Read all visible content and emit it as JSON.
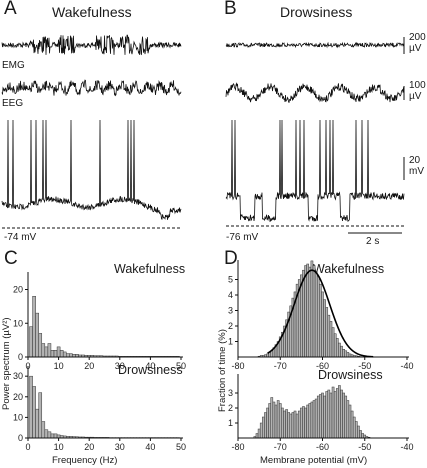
{
  "panels": {
    "A": {
      "letter": "A",
      "title": "Wakefulness",
      "emg_label": "EMG",
      "eeg_label": "EEG",
      "baseline": "-74 mV"
    },
    "B": {
      "letter": "B",
      "title": "Drowsiness",
      "baseline": "-76 mV",
      "scale_emg": [
        "200",
        "µV"
      ],
      "scale_eeg": [
        "100",
        "µV"
      ],
      "scale_vm": [
        "20",
        "mV"
      ],
      "scale_time": "2 s"
    },
    "C": {
      "letter": "C",
      "top_title": "Wakefulness",
      "bottom_title": "Drowsiness"
    },
    "D": {
      "letter": "D",
      "top_title": "Wakefulness",
      "bottom_title": "Drowsiness"
    }
  },
  "chart_data": [
    {
      "type": "bar",
      "id": "C-wakefulness",
      "title": "Wakefulness",
      "xlabel": "Frequency (Hz)",
      "ylabel": "Power spectrum (µV²)",
      "x_ticks": [
        "0",
        "10",
        "20",
        "30",
        "40",
        "50"
      ],
      "y_ticks": [
        "0",
        "10",
        "20"
      ],
      "xlim": [
        0,
        50
      ],
      "ylim": [
        0,
        24
      ],
      "bin_width": 1,
      "x": [
        1,
        2,
        3,
        4,
        5,
        6,
        7,
        8,
        9,
        10,
        11,
        12,
        13,
        14,
        15,
        16,
        17,
        18,
        19,
        20,
        21,
        22,
        23,
        24,
        25,
        26,
        27,
        28,
        29,
        30,
        31,
        32,
        33,
        34,
        35,
        36,
        37,
        38,
        39,
        40,
        41,
        42,
        43,
        44,
        45,
        46,
        47,
        48,
        49
      ],
      "values": [
        9,
        18,
        13,
        7,
        4,
        3,
        4,
        2,
        2,
        3,
        2,
        1.5,
        1,
        1,
        0.8,
        0.8,
        0.6,
        0.6,
        0.5,
        0.5,
        0.5,
        0.4,
        0.4,
        0.4,
        0.3,
        0.3,
        0.3,
        0.3,
        0.3,
        0.2,
        0.2,
        0.2,
        0.2,
        0.2,
        0.2,
        0.2,
        0.2,
        0.2,
        0.2,
        0.2,
        0.2,
        0.2,
        0.2,
        0.2,
        0.2,
        0.2,
        0.2,
        0.2,
        0.2
      ]
    },
    {
      "type": "bar",
      "id": "C-drowsiness",
      "title": "Drowsiness",
      "xlabel": "Frequency (Hz)",
      "ylabel": "Power spectrum (µV²)",
      "x_ticks": [
        "0",
        "10",
        "20",
        "30",
        "40",
        "50"
      ],
      "y_ticks": [
        "0",
        "10",
        "20",
        "30"
      ],
      "xlim": [
        0,
        50
      ],
      "ylim": [
        0,
        33
      ],
      "bin_width": 1,
      "x": [
        1,
        2,
        3,
        4,
        5,
        6,
        7,
        8,
        9,
        10,
        11,
        12,
        13,
        14,
        15,
        16,
        17,
        18,
        19,
        20,
        21,
        22,
        23,
        24,
        25,
        26,
        27,
        28,
        29,
        30,
        31,
        32,
        33,
        34,
        35,
        36,
        37,
        38,
        39,
        40,
        41,
        42,
        43,
        44,
        45,
        46,
        47,
        48,
        49
      ],
      "values": [
        30,
        25,
        14,
        22,
        8,
        4,
        3,
        2,
        2,
        1.5,
        1.2,
        1,
        0.8,
        0.8,
        0.7,
        0.6,
        0.5,
        0.5,
        0.4,
        0.4,
        0.4,
        0.3,
        0.3,
        0.3,
        0.3,
        0.3,
        0.2,
        0.2,
        0.2,
        0.2,
        0.2,
        0.2,
        0.2,
        0.2,
        0.2,
        0.2,
        0.2,
        0.2,
        0.2,
        0.2,
        0.2,
        0.2,
        0.2,
        0.2,
        0.2,
        0.2,
        0.2,
        0.2,
        0.2
      ]
    },
    {
      "type": "bar",
      "id": "D-wakefulness",
      "title": "Wakefulness",
      "xlabel": "Membrane potential (mV)",
      "ylabel": "Fraction of time (%)",
      "x_ticks": [
        "-80",
        "-70",
        "-60",
        "-50",
        "-40"
      ],
      "y_ticks": [
        "1",
        "2",
        "3",
        "4",
        "5"
      ],
      "xlim": [
        -80,
        -40
      ],
      "ylim": [
        0,
        6
      ],
      "bin_width": 0.5,
      "x": [
        -75,
        -74.5,
        -74,
        -73.5,
        -73,
        -72.5,
        -72,
        -71.5,
        -71,
        -70.5,
        -70,
        -69.5,
        -69,
        -68.5,
        -68,
        -67.5,
        -67,
        -66.5,
        -66,
        -65.5,
        -65,
        -64.5,
        -64,
        -63.5,
        -63,
        -62.5,
        -62,
        -61.5,
        -61,
        -60.5,
        -60,
        -59.5,
        -59,
        -58.5,
        -58,
        -57.5,
        -57,
        -56.5,
        -56,
        -55.5,
        -55,
        -54.5,
        -54,
        -53.5,
        -53,
        -52.5,
        -52,
        -51.5,
        -51
      ],
      "values": [
        0.05,
        0.1,
        0.1,
        0.15,
        0.2,
        0.3,
        0.4,
        0.6,
        0.8,
        1.0,
        1.3,
        1.6,
        2.0,
        2.4,
        2.9,
        3.3,
        3.8,
        4.2,
        4.7,
        5.0,
        5.3,
        5.6,
        5.9,
        6.0,
        5.8,
        6.2,
        5.9,
        5.5,
        5.2,
        4.7,
        4.2,
        3.7,
        3.2,
        2.7,
        2.3,
        1.9,
        1.5,
        1.2,
        0.9,
        0.7,
        0.5,
        0.4,
        0.3,
        0.2,
        0.15,
        0.1,
        0.08,
        0.05,
        0.03
      ],
      "fit": "gaussian",
      "fit_params": {
        "mean": -62.5,
        "sd": 4.2,
        "amplitude": 5.6
      }
    },
    {
      "type": "bar",
      "id": "D-drowsiness",
      "title": "Drowsiness",
      "xlabel": "Membrane potential (mV)",
      "ylabel": "Fraction of time (%)",
      "x_ticks": [
        "-80",
        "-70",
        "-60",
        "-50",
        "-40"
      ],
      "y_ticks": [
        "1",
        "2",
        "3"
      ],
      "xlim": [
        -80,
        -40
      ],
      "ylim": [
        0,
        4
      ],
      "bin_width": 0.5,
      "x": [
        -76,
        -75.5,
        -75,
        -74.5,
        -74,
        -73.5,
        -73,
        -72.5,
        -72,
        -71.5,
        -71,
        -70.5,
        -70,
        -69.5,
        -69,
        -68.5,
        -68,
        -67.5,
        -67,
        -66.5,
        -66,
        -65.5,
        -65,
        -64.5,
        -64,
        -63.5,
        -63,
        -62.5,
        -62,
        -61.5,
        -61,
        -60.5,
        -60,
        -59.5,
        -59,
        -58.5,
        -58,
        -57.5,
        -57,
        -56.5,
        -56,
        -55.5,
        -55,
        -54.5,
        -54,
        -53.5,
        -53,
        -52.5,
        -52,
        -51.5,
        -51,
        -50.5,
        -50,
        -49.5,
        -49
      ],
      "values": [
        0.1,
        0.3,
        0.6,
        1.0,
        1.4,
        1.7,
        2.0,
        2.3,
        2.7,
        2.4,
        2.2,
        2.5,
        2.3,
        2.0,
        1.8,
        1.9,
        1.7,
        1.6,
        1.7,
        1.8,
        1.6,
        1.8,
        2.0,
        2.1,
        2.0,
        2.2,
        2.3,
        2.4,
        2.5,
        2.6,
        2.8,
        2.9,
        3.0,
        2.8,
        3.1,
        3.2,
        3.0,
        3.4,
        3.1,
        3.3,
        3.5,
        3.2,
        3.0,
        2.8,
        2.5,
        2.2,
        1.8,
        1.4,
        1.1,
        0.8,
        0.5,
        0.3,
        0.2,
        0.1,
        0.05
      ]
    }
  ]
}
